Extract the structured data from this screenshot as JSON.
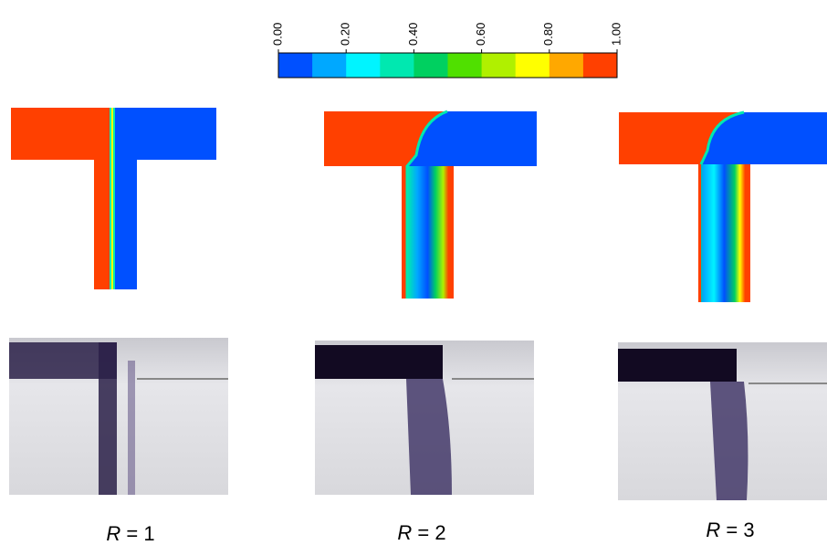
{
  "colorbar": {
    "ticks": [
      {
        "value": 0,
        "label": "0.00"
      },
      {
        "value": 0.2,
        "label": "0.20"
      },
      {
        "value": 0.4,
        "label": "0.40"
      },
      {
        "value": 0.6,
        "label": "0.60"
      },
      {
        "value": 0.8,
        "label": "0.80"
      },
      {
        "value": 1,
        "label": "1.00"
      }
    ],
    "colors": [
      "#0050ff",
      "#00a8ff",
      "#00f4ff",
      "#00e8b0",
      "#00d060",
      "#50e000",
      "#b0f000",
      "#ffff00",
      "#ffa800",
      "#ff4000"
    ]
  },
  "panels": [
    {
      "variable": "R",
      "text": "= 1"
    },
    {
      "variable": "R",
      "text": "= 2"
    },
    {
      "variable": "R",
      "text": "= 3"
    }
  ]
}
